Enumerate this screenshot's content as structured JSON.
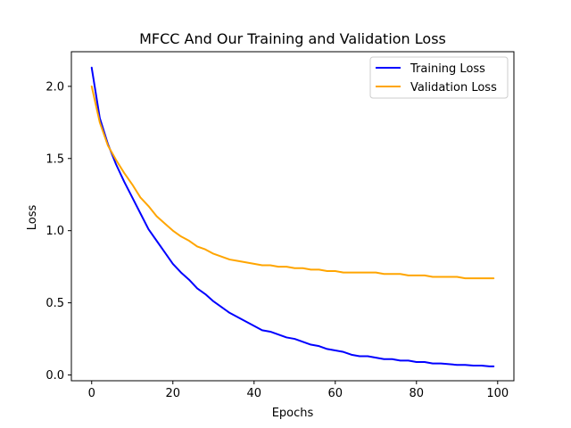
{
  "chart_data": {
    "type": "line",
    "title": "MFCC And Our Training and Validation Loss",
    "xlabel": "Epochs",
    "ylabel": "Loss",
    "xlim": [
      -5,
      104
    ],
    "ylim": [
      -0.04,
      2.24
    ],
    "xticks": [
      0,
      20,
      40,
      60,
      80,
      100
    ],
    "xtick_labels": [
      "0",
      "20",
      "40",
      "60",
      "80",
      "100"
    ],
    "yticks": [
      0.0,
      0.5,
      1.0,
      1.5,
      2.0
    ],
    "ytick_labels": [
      "0.0",
      "0.5",
      "1.0",
      "1.5",
      "2.0"
    ],
    "grid": false,
    "legend_position": "top-right",
    "series": [
      {
        "name": "Training Loss",
        "color": "#0000ff",
        "x": [
          0,
          2,
          4,
          6,
          8,
          10,
          12,
          14,
          16,
          18,
          20,
          22,
          24,
          26,
          28,
          30,
          32,
          34,
          36,
          38,
          40,
          42,
          44,
          46,
          48,
          50,
          52,
          54,
          56,
          58,
          60,
          62,
          64,
          66,
          68,
          70,
          72,
          74,
          76,
          78,
          80,
          82,
          84,
          86,
          88,
          90,
          92,
          94,
          96,
          98,
          99
        ],
        "y": [
          2.13,
          1.78,
          1.6,
          1.46,
          1.34,
          1.23,
          1.12,
          1.01,
          0.93,
          0.85,
          0.77,
          0.71,
          0.66,
          0.6,
          0.56,
          0.51,
          0.47,
          0.43,
          0.4,
          0.37,
          0.34,
          0.31,
          0.3,
          0.28,
          0.26,
          0.25,
          0.23,
          0.21,
          0.2,
          0.18,
          0.17,
          0.16,
          0.14,
          0.13,
          0.13,
          0.12,
          0.11,
          0.11,
          0.1,
          0.1,
          0.09,
          0.09,
          0.08,
          0.08,
          0.075,
          0.07,
          0.07,
          0.065,
          0.065,
          0.06,
          0.06
        ]
      },
      {
        "name": "Validation Loss",
        "color": "#ffa500",
        "x": [
          0,
          2,
          4,
          6,
          8,
          10,
          12,
          14,
          16,
          18,
          20,
          22,
          24,
          26,
          28,
          30,
          32,
          34,
          36,
          38,
          40,
          42,
          44,
          46,
          48,
          50,
          52,
          54,
          56,
          58,
          60,
          62,
          64,
          66,
          68,
          70,
          72,
          74,
          76,
          78,
          80,
          82,
          84,
          86,
          88,
          90,
          92,
          94,
          96,
          98,
          99
        ],
        "y": [
          2.0,
          1.75,
          1.59,
          1.49,
          1.4,
          1.32,
          1.23,
          1.17,
          1.1,
          1.05,
          1.0,
          0.96,
          0.93,
          0.89,
          0.87,
          0.84,
          0.82,
          0.8,
          0.79,
          0.78,
          0.77,
          0.76,
          0.76,
          0.75,
          0.75,
          0.74,
          0.74,
          0.73,
          0.73,
          0.72,
          0.72,
          0.71,
          0.71,
          0.71,
          0.71,
          0.71,
          0.7,
          0.7,
          0.7,
          0.69,
          0.69,
          0.69,
          0.68,
          0.68,
          0.68,
          0.68,
          0.67,
          0.67,
          0.67,
          0.67,
          0.67
        ]
      }
    ]
  }
}
